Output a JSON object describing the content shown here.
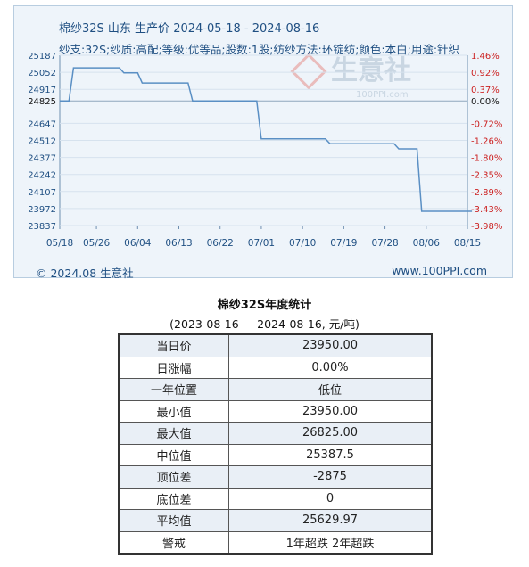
{
  "title": "棉纱32S 山东 生产价 2024-05-18 - 2024-08-16",
  "subtitle": "纱支:32S;纱质:高配;等级:优等品;股数:1股;纺纱方法:环锭纺;颜色:本白;用途:针织",
  "watermark": "生意社",
  "watermark_url": "100PPI.com",
  "footer": {
    "copyright": "© 2024.08 生意社",
    "url": "www.100PPI.com"
  },
  "colors": {
    "line": "#5a8fc4",
    "left_axis": "#1f4f82",
    "right_axis": "#cc2222",
    "grid": "#d6e2ee"
  },
  "chart_data": {
    "type": "line",
    "title": "棉纱32S 山东 生产价 2024-05-18 - 2024-08-16",
    "base_value": 24825,
    "y_left_ticks": [
      25187,
      25052,
      24917,
      24825,
      24647,
      24512,
      24377,
      24242,
      24107,
      23972,
      23837
    ],
    "y_right_ticks": [
      "1.46%",
      "0.92%",
      "0.37%",
      "0.00%",
      "-0.72%",
      "-1.26%",
      "-1.80%",
      "-2.35%",
      "-2.89%",
      "-3.43%",
      "-3.98%"
    ],
    "x_ticks": [
      "05/18",
      "05/26",
      "06/04",
      "06/13",
      "06/22",
      "07/01",
      "07/10",
      "07/19",
      "07/28",
      "08/06",
      "08/15"
    ],
    "ylim": [
      23837,
      25187
    ],
    "series": [
      {
        "x": [
          "2024-05-18",
          "2024-05-20",
          "2024-05-21",
          "2024-05-31",
          "2024-06-01",
          "2024-06-04",
          "2024-06-05",
          "2024-06-15",
          "2024-06-16",
          "2024-06-30",
          "2024-07-01",
          "2024-07-15",
          "2024-07-16",
          "2024-07-30",
          "2024-07-31",
          "2024-08-04",
          "2024-08-05",
          "2024-08-16"
        ],
        "y": [
          24825,
          24825,
          25087,
          25087,
          25047,
          25047,
          24967,
          24967,
          24825,
          24825,
          24525,
          24525,
          24485,
          24485,
          24445,
          24445,
          23950,
          23950
        ]
      }
    ]
  },
  "stats": {
    "title": "棉纱32S年度统计",
    "subtitle": "(2023-08-16 — 2024-08-16, 元/吨)",
    "rows": [
      {
        "label": "当日价",
        "value": "23950.00"
      },
      {
        "label": "日涨幅",
        "value": "0.00%"
      },
      {
        "label": "一年位置",
        "value": "低位"
      },
      {
        "label": "最小值",
        "value": "23950.00"
      },
      {
        "label": "最大值",
        "value": "26825.00"
      },
      {
        "label": "中位值",
        "value": "25387.5"
      },
      {
        "label": "顶位差",
        "value": "-2875"
      },
      {
        "label": "底位差",
        "value": "0"
      },
      {
        "label": "平均值",
        "value": "25629.97"
      },
      {
        "label": "警戒",
        "value": "1年超跌 2年超跌"
      }
    ]
  }
}
